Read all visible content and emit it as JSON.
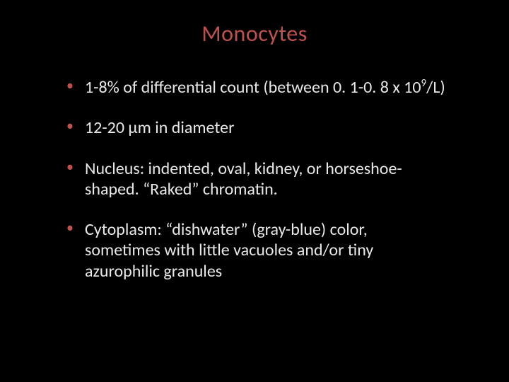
{
  "colors": {
    "background": "#000000",
    "title": "#c0504d",
    "body_text": "#e8e8e8",
    "bullet_marker": "#c0504d"
  },
  "typography": {
    "title_fontsize": 32,
    "body_fontsize": 24,
    "font_family": "Calibri"
  },
  "slide": {
    "title": "Monocytes",
    "bullets": [
      {
        "text_html": "1-8% of differential count (between 0. 1-0. 8 x 10<sup>9</sup>/L)"
      },
      {
        "text_html": "12-20 µm in diameter"
      },
      {
        "text_html": "Nucleus: indented, oval, kidney, or horseshoe-shaped. “Raked” chromatin."
      },
      {
        "text_html": "Cytoplasm: “dishwater” (gray-blue) color, sometimes with little vacuoles and/or tiny azurophilic granules"
      }
    ]
  }
}
